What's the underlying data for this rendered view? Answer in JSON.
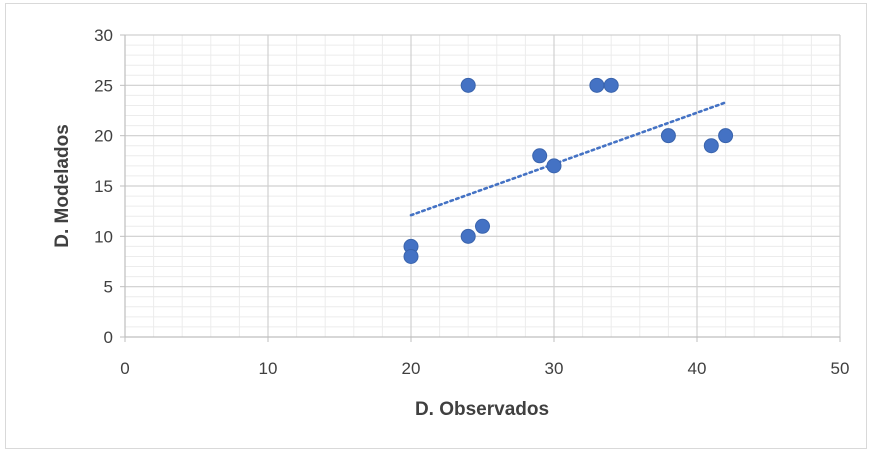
{
  "chart_data": {
    "type": "scatter",
    "xlabel": "D. Observados",
    "ylabel": "D. Modelados",
    "xlim": [
      0,
      50
    ],
    "ylim": [
      0,
      30
    ],
    "xticks": [
      0,
      10,
      20,
      30,
      40,
      50
    ],
    "yticks": [
      0,
      5,
      10,
      15,
      20,
      25,
      30
    ],
    "minor_gridlines": true,
    "series": [
      {
        "points": [
          {
            "x": 20,
            "y": 9
          },
          {
            "x": 20,
            "y": 8
          },
          {
            "x": 24,
            "y": 25
          },
          {
            "x": 24,
            "y": 10
          },
          {
            "x": 25,
            "y": 11
          },
          {
            "x": 29,
            "y": 18
          },
          {
            "x": 30,
            "y": 17
          },
          {
            "x": 33,
            "y": 25
          },
          {
            "x": 34,
            "y": 25
          },
          {
            "x": 38,
            "y": 20
          },
          {
            "x": 41,
            "y": 19
          },
          {
            "x": 42,
            "y": 20
          }
        ],
        "color": "#4472c4"
      }
    ],
    "trendline": {
      "type": "linear",
      "from": {
        "x": 20,
        "y": 12.1
      },
      "to": {
        "x": 42,
        "y": 23.3
      },
      "color": "#4472c4",
      "style": "dotted"
    }
  }
}
